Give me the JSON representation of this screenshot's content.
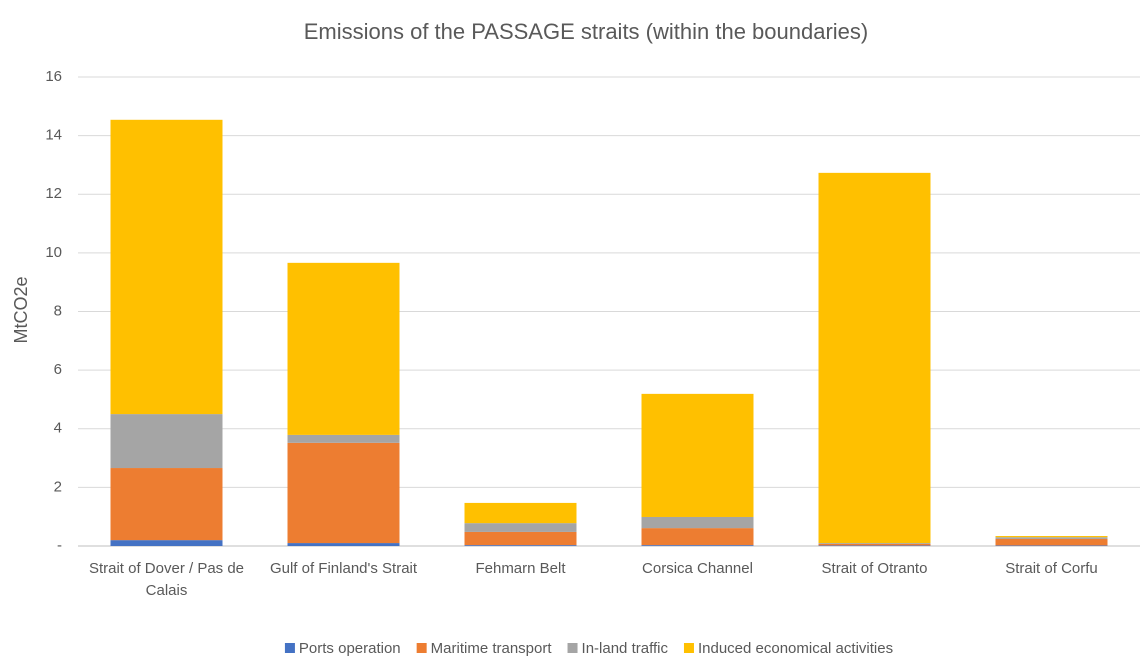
{
  "chart_data": {
    "type": "stacked_bar",
    "title": "Emissions of the PASSAGE straits (within the boundaries)",
    "ylabel": "MtCO2e",
    "categories": [
      "Strait of Dover / Pas de Calais",
      "Gulf of Finland's Strait",
      "Fehmarn Belt",
      "Corsica Channel",
      "Strait of Otranto",
      "Strait of Corfu"
    ],
    "series": [
      {
        "name": "Ports operation",
        "color": "#4472c4",
        "values": [
          0.2,
          0.1,
          0.03,
          0.03,
          0.02,
          0.02
        ]
      },
      {
        "name": "Maritime transport",
        "color": "#ed7d31",
        "values": [
          2.46,
          3.42,
          0.45,
          0.58,
          0.05,
          0.22
        ]
      },
      {
        "name": "In-land traffic",
        "color": "#a5a5a5",
        "values": [
          1.84,
          0.27,
          0.3,
          0.38,
          0.03,
          0.06
        ]
      },
      {
        "name": "Induced economical activities",
        "color": "#ffc000",
        "values": [
          10.04,
          5.87,
          0.69,
          4.2,
          12.63,
          0.04
        ]
      }
    ],
    "ylim": [
      0,
      16
    ],
    "yticks": [
      {
        "value": 0,
        "label": "-"
      },
      2,
      4,
      6,
      8,
      10,
      12,
      14,
      16
    ],
    "grid": true,
    "legend": "bottom"
  }
}
